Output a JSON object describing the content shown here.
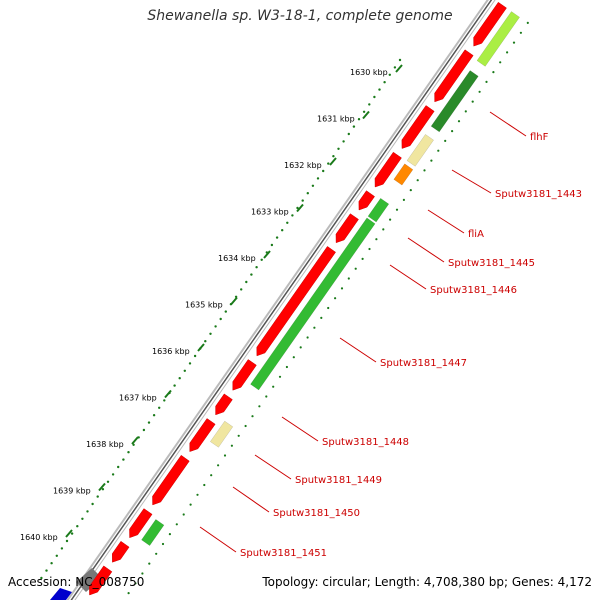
{
  "title": "Shewanella sp. W3-18-1, complete genome",
  "footer": {
    "accession": "Accession: NC_008750",
    "summary": "Topology: circular; Length: 4,708,380 bp; Genes: 4,172"
  },
  "ticks": [
    {
      "label": "1630 kbp"
    },
    {
      "label": "1631 kbp"
    },
    {
      "label": "1632 kbp"
    },
    {
      "label": "1633 kbp"
    },
    {
      "label": "1634 kbp"
    },
    {
      "label": "1635 kbp"
    },
    {
      "label": "1636 kbp"
    },
    {
      "label": "1637 kbp"
    },
    {
      "label": "1638 kbp"
    },
    {
      "label": "1639 kbp"
    },
    {
      "label": "1640 kbp"
    }
  ],
  "gene_labels": [
    {
      "name": "flhF"
    },
    {
      "name": "Sputw3181_1443"
    },
    {
      "name": "fliA"
    },
    {
      "name": "Sputw3181_1445"
    },
    {
      "name": "Sputw3181_1446"
    },
    {
      "name": "Sputw3181_1447"
    },
    {
      "name": "Sputw3181_1448"
    },
    {
      "name": "Sputw3181_1449"
    },
    {
      "name": "Sputw3181_1450"
    },
    {
      "name": "Sputw3181_1451"
    }
  ],
  "colors": {
    "cds": "#ff0000",
    "outline": "#999999",
    "dark_green": "#2a8a2a",
    "green": "#33bb33",
    "light_green": "#aaee44",
    "pale_yellow": "#f0e6a0",
    "orange": "#ff8800",
    "label": "#cc0000",
    "tick": "#1a7a1a"
  }
}
